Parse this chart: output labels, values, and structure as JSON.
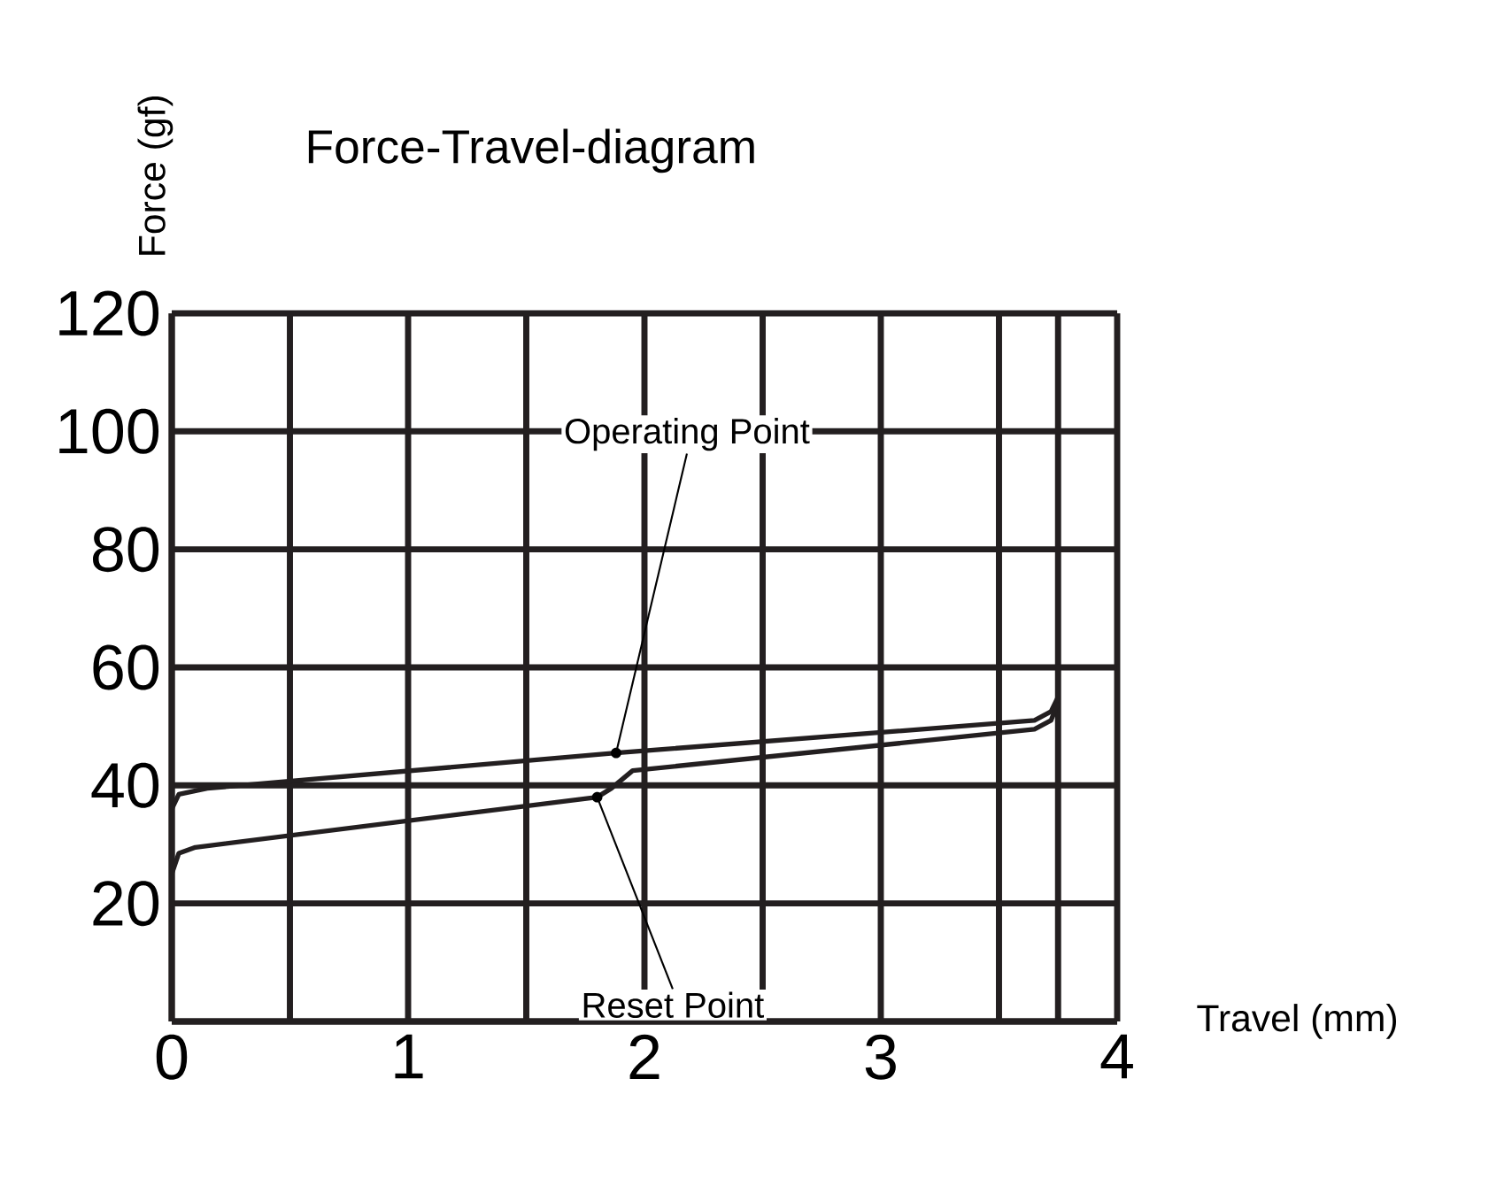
{
  "chart_data": {
    "type": "line",
    "title": "Force-Travel-diagram",
    "xlabel": "Travel (mm)",
    "ylabel": "Force (gf)",
    "series": [
      {
        "color": "#231f20",
        "x": [
          0,
          0.03,
          0.15,
          1.88,
          3.65,
          3.72,
          3.75,
          3.75
        ],
        "values": [
          36,
          38.5,
          39.5,
          45.5,
          51,
          52.5,
          55,
          60
        ]
      },
      {
        "color": "#231f20",
        "x": [
          0,
          0.03,
          0.1,
          1.8,
          1.86,
          1.95,
          3.65,
          3.72,
          3.75
        ],
        "values": [
          25,
          28.5,
          29.5,
          38,
          39.5,
          42.5,
          49.5,
          51,
          54
        ]
      }
    ],
    "annotations": [
      {
        "text": "Operating Point",
        "x": 1.88,
        "y": 45.5
      },
      {
        "text": "Reset Point",
        "x": 1.8,
        "y": 38
      }
    ],
    "xlim": [
      0,
      4
    ],
    "ylim": [
      0,
      120
    ],
    "xticks": [
      0,
      {
        "value": 0.5,
        "label": null
      },
      1,
      {
        "value": 1.5,
        "label": null
      },
      2,
      {
        "value": 2.5,
        "label": null
      },
      3,
      {
        "value": 3.5,
        "label": null
      },
      {
        "value": 3.75,
        "label": null
      },
      4
    ],
    "yticks": [
      {
        "value": 0,
        "label": null
      },
      20,
      40,
      60,
      80,
      100,
      120
    ],
    "grid": true
  }
}
